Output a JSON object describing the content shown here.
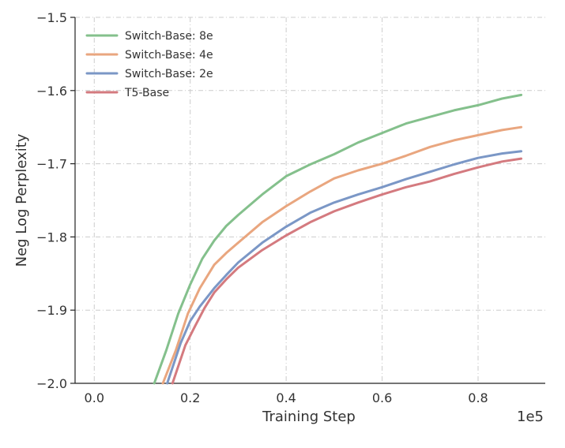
{
  "chart_data": {
    "type": "line",
    "title": "",
    "xlabel": "Training Step",
    "ylabel": "Neg Log Perplexity",
    "x_multiplier_label": "1e5",
    "xlim": [
      -0.04,
      0.94
    ],
    "ylim": [
      -2.0,
      -1.5
    ],
    "x_ticks": [
      0.0,
      0.2,
      0.4,
      0.6,
      0.8
    ],
    "x_tick_labels": [
      "0.0",
      "0.2",
      "0.4",
      "0.6",
      "0.8"
    ],
    "y_ticks": [
      -2.0,
      -1.9,
      -1.8,
      -1.7,
      -1.6,
      -1.5
    ],
    "y_tick_labels": [
      "−2.0",
      "−1.9",
      "−1.8",
      "−1.7",
      "−1.6",
      "−1.5"
    ],
    "grid": true,
    "legend_position": "top-left",
    "series": [
      {
        "name": "Switch-Base: 8e",
        "color": "#84c08c",
        "x": [
          0.125,
          0.15,
          0.175,
          0.2,
          0.225,
          0.25,
          0.275,
          0.3,
          0.35,
          0.4,
          0.45,
          0.5,
          0.55,
          0.6,
          0.65,
          0.7,
          0.75,
          0.8,
          0.85,
          0.89
        ],
        "y": [
          -2.0,
          -1.955,
          -1.905,
          -1.865,
          -1.83,
          -1.805,
          -1.785,
          -1.77,
          -1.742,
          -1.717,
          -1.701,
          -1.687,
          -1.671,
          -1.658,
          -1.645,
          -1.636,
          -1.627,
          -1.62,
          -1.611,
          -1.606
        ]
      },
      {
        "name": "Switch-Base: 4e",
        "color": "#e9a67f",
        "x": [
          0.143,
          0.17,
          0.195,
          0.22,
          0.25,
          0.275,
          0.3,
          0.35,
          0.4,
          0.45,
          0.5,
          0.55,
          0.6,
          0.65,
          0.7,
          0.75,
          0.8,
          0.85,
          0.89
        ],
        "y": [
          -2.0,
          -1.955,
          -1.905,
          -1.87,
          -1.838,
          -1.822,
          -1.808,
          -1.78,
          -1.758,
          -1.738,
          -1.72,
          -1.709,
          -1.7,
          -1.689,
          -1.677,
          -1.668,
          -1.661,
          -1.654,
          -1.65
        ]
      },
      {
        "name": "Switch-Base: 2e",
        "color": "#7b97c6",
        "x": [
          0.152,
          0.18,
          0.2,
          0.22,
          0.25,
          0.275,
          0.3,
          0.35,
          0.4,
          0.45,
          0.5,
          0.55,
          0.6,
          0.65,
          0.7,
          0.75,
          0.8,
          0.85,
          0.89
        ],
        "y": [
          -2.0,
          -1.945,
          -1.915,
          -1.895,
          -1.87,
          -1.852,
          -1.835,
          -1.808,
          -1.786,
          -1.767,
          -1.753,
          -1.742,
          -1.732,
          -1.721,
          -1.711,
          -1.701,
          -1.692,
          -1.686,
          -1.683
        ]
      },
      {
        "name": "T5-Base",
        "color": "#d47a7f",
        "x": [
          0.163,
          0.19,
          0.21,
          0.23,
          0.25,
          0.275,
          0.3,
          0.35,
          0.4,
          0.45,
          0.5,
          0.55,
          0.6,
          0.65,
          0.7,
          0.75,
          0.8,
          0.85,
          0.89
        ],
        "y": [
          -2.0,
          -1.948,
          -1.922,
          -1.897,
          -1.876,
          -1.858,
          -1.842,
          -1.818,
          -1.798,
          -1.78,
          -1.765,
          -1.753,
          -1.742,
          -1.732,
          -1.724,
          -1.714,
          -1.705,
          -1.697,
          -1.693
        ]
      }
    ]
  }
}
